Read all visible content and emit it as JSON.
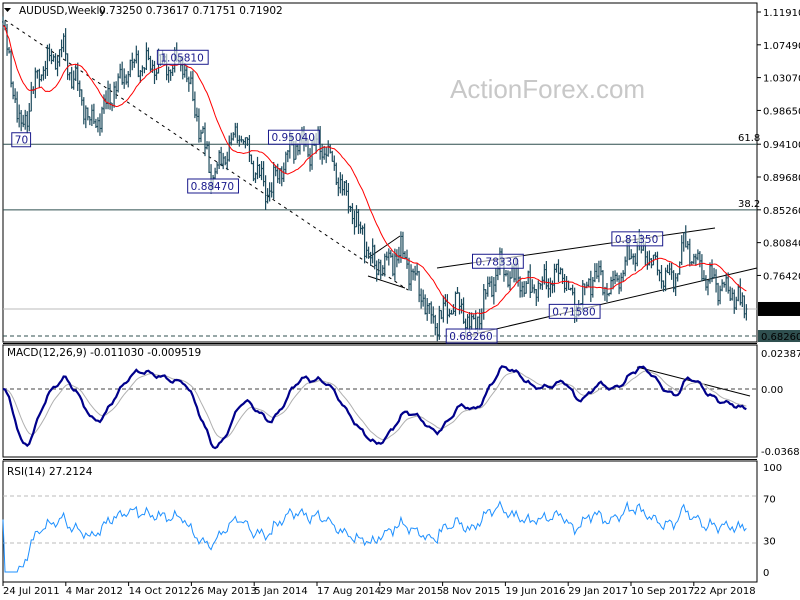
{
  "header": {
    "symbol_timeframe": "AUDUSD,Weekly",
    "ohlc": "0.73250 0.73617 0.71751 0.71902",
    "menu_icon": "triangle-down-icon"
  },
  "watermark": "ActionForex.com",
  "colors": {
    "bars": "#1c4a5c",
    "moving_average": "#ff0000",
    "macd_main": "#00008b",
    "macd_signal": "#b0b0b0",
    "rsi": "#1e90ff",
    "current_price_badge": "#000000",
    "level_badge": "#2f4f4f"
  },
  "chart_data": [
    {
      "type": "bar",
      "subtype": "ohlc",
      "title": "AUDUSD,Weekly",
      "close_path": [
        [
          "2011-07-24",
          1.1
        ],
        [
          "2011-09-25",
          0.955
        ],
        [
          "2011-11-27",
          1.04
        ],
        [
          "2012-02-12",
          1.07
        ],
        [
          "2012-05-27",
          0.965
        ],
        [
          "2012-10-07",
          1.05
        ],
        [
          "2013-04-07",
          1.05
        ],
        [
          "2013-07-21",
          0.895
        ],
        [
          "2013-10-13",
          0.96
        ],
        [
          "2014-01-26",
          0.875
        ],
        [
          "2014-04-27",
          0.94
        ],
        [
          "2014-08-17",
          0.935
        ],
        [
          "2015-02-01",
          0.775
        ],
        [
          "2015-05-10",
          0.795
        ],
        [
          "2015-08-23",
          0.7
        ],
        [
          "2015-11-15",
          0.73
        ],
        [
          "2016-01-03",
          0.69
        ],
        [
          "2016-04-03",
          0.775
        ],
        [
          "2016-07-31",
          0.745
        ],
        [
          "2016-11-13",
          0.77
        ],
        [
          "2016-12-25",
          0.722
        ],
        [
          "2017-03-05",
          0.765
        ],
        [
          "2017-04-30",
          0.745
        ],
        [
          "2017-07-30",
          0.805
        ],
        [
          "2017-10-22",
          0.765
        ],
        [
          "2017-12-03",
          0.755
        ],
        [
          "2018-01-07",
          0.805
        ],
        [
          "2018-04-01",
          0.76
        ],
        [
          "2018-06-24",
          0.74
        ],
        [
          "2018-08-12",
          0.719
        ]
      ],
      "ylim": [
        0.6758,
        1.125
      ],
      "y_ticks": [
        "1.11910",
        "1.07490",
        "1.03070",
        "0.98650",
        "0.94100",
        "0.89680",
        "0.85260",
        "0.80840",
        "0.76420"
      ],
      "current_price": "0.71902",
      "level_badge": "0.68260",
      "x_ticks": [
        "24 Jul 2011",
        "4 Mar 2012",
        "14 Oct 2012",
        "26 May 2013",
        "5 Jan 2014",
        "17 Aug 2014",
        "29 Mar 2015",
        "8 Nov 2015",
        "19 Jun 2016",
        "29 Jan 2017",
        "10 Sep 2017",
        "22 Apr 2018"
      ],
      "horizontal_levels": [
        {
          "price": 0.941,
          "label": "61.8"
        },
        {
          "price": 0.8526,
          "label": "38.2"
        },
        {
          "price": 0.71902,
          "label": ""
        },
        {
          "price": 0.6826,
          "label": "",
          "dashed": true
        }
      ],
      "annotations": [
        {
          "text": "1.05810",
          "date": "2013-04-07",
          "price": 1.0581
        },
        {
          "text": "0.95040",
          "date": "2014-04-27",
          "price": 0.9504
        },
        {
          "text": "0.88470",
          "date": "2013-07-21",
          "price": 0.8847
        },
        {
          "text": "70",
          "date": "2011-09-25",
          "price": 0.947
        },
        {
          "text": "0.78330",
          "date": "2016-04-03",
          "price": 0.7833
        },
        {
          "text": "0.81350",
          "date": "2017-07-30",
          "price": 0.8135
        },
        {
          "text": "0.71580",
          "date": "2016-12-25",
          "price": 0.7158
        },
        {
          "text": "0.68260",
          "date": "2016-01-03",
          "price": 0.6826
        }
      ]
    },
    {
      "type": "line",
      "title": "MACD(12,26,9) -0.011030 -0.009519",
      "ylim": [
        -0.036802,
        0.023876
      ],
      "y_ticks": [
        "0.023876",
        "0.00",
        "-0.036802"
      ]
    },
    {
      "type": "line",
      "title": "RSI(14) 27.2124",
      "ylim": [
        0,
        100
      ],
      "y_ticks": [
        "100",
        "70",
        "30",
        "0"
      ],
      "levels": [
        70,
        30
      ]
    }
  ]
}
